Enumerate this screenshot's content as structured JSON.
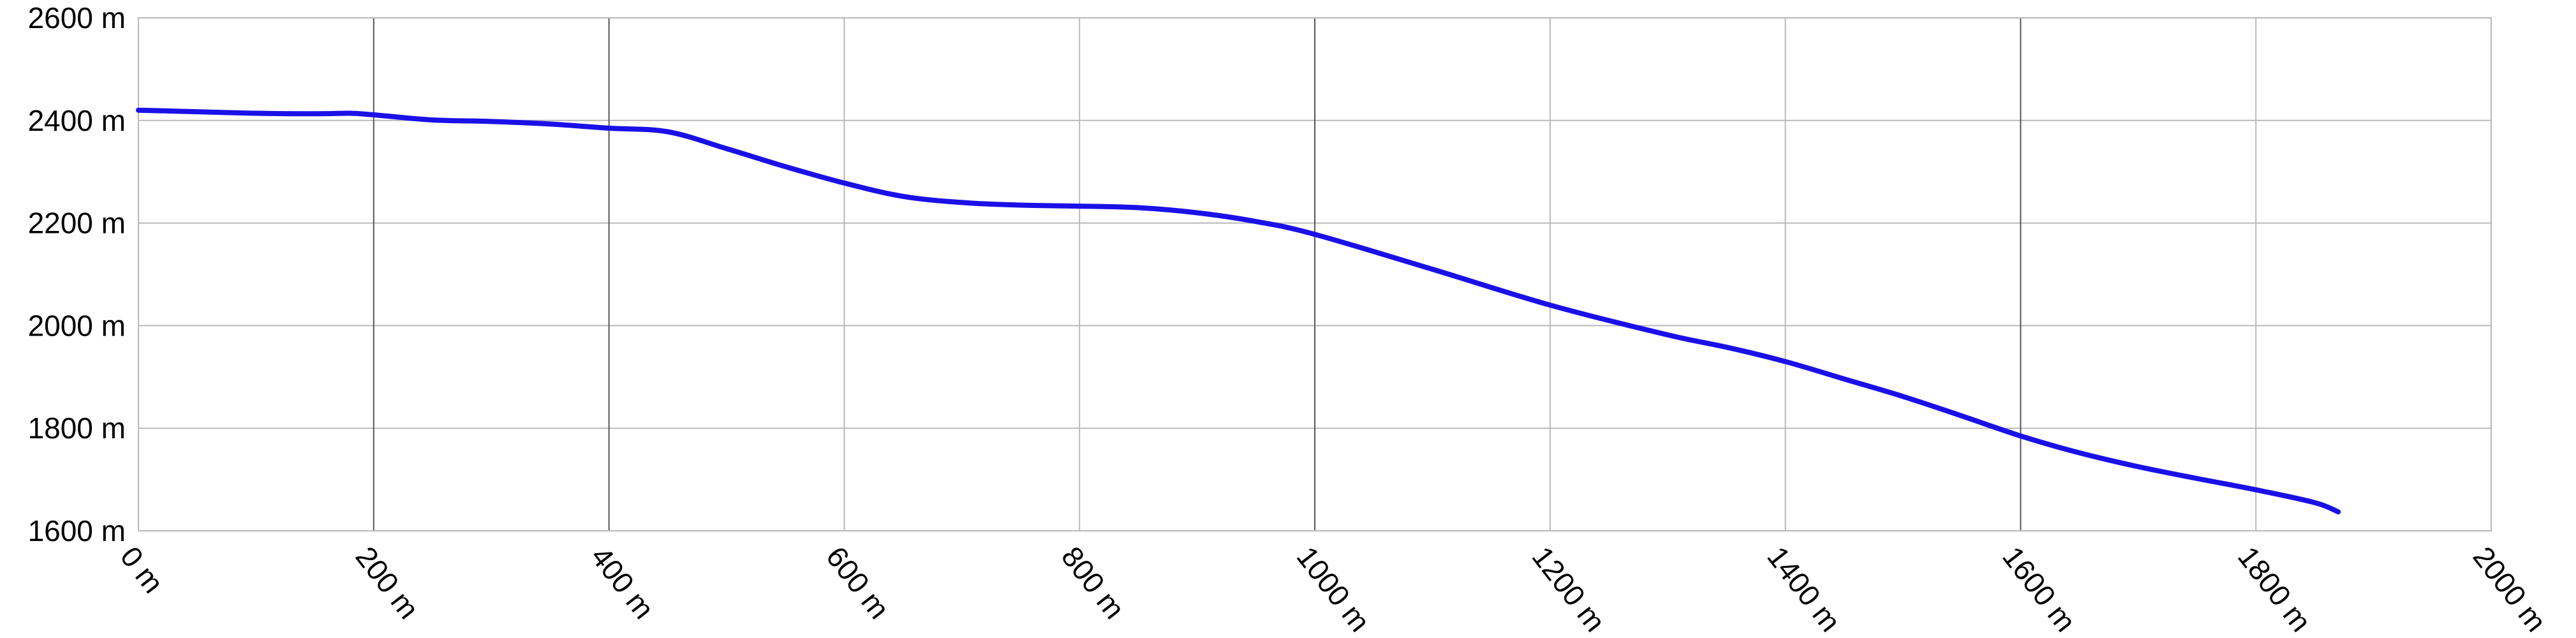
{
  "chart_data": {
    "type": "line",
    "title": "",
    "xlabel": "",
    "ylabel": "",
    "xlim": [
      0,
      2000
    ],
    "ylim": [
      1600,
      2600
    ],
    "x_ticks": [
      0,
      200,
      400,
      600,
      800,
      1000,
      1200,
      1400,
      1600,
      1800,
      2000
    ],
    "x_tick_labels": [
      "0 m",
      "200 m",
      "400 m",
      "600 m",
      "800 m",
      "1000 m",
      "1200 m",
      "1400 m",
      "1600 m",
      "1800 m",
      "2000 m"
    ],
    "y_ticks": [
      1600,
      1800,
      2000,
      2200,
      2400,
      2600
    ],
    "y_tick_labels": [
      "1600 m",
      "1800 m",
      "2000 m",
      "2200 m",
      "2400 m",
      "2600 m"
    ],
    "major_x_gridlines": [
      200,
      400,
      1000,
      1600
    ],
    "grid": true,
    "series_color": "#1a10e8",
    "series": [
      {
        "x": [
          0,
          50,
          100,
          150,
          180,
          200,
          250,
          300,
          350,
          400,
          450,
          500,
          550,
          600,
          650,
          700,
          750,
          800,
          850,
          900,
          950,
          1000,
          1100,
          1200,
          1300,
          1350,
          1400,
          1450,
          1500,
          1550,
          1600,
          1650,
          1700,
          1750,
          1800,
          1850,
          1870
        ],
        "y": [
          2420,
          2417,
          2414,
          2413,
          2414,
          2411,
          2401,
          2398,
          2393,
          2385,
          2378,
          2345,
          2310,
          2278,
          2252,
          2240,
          2235,
          2233,
          2230,
          2220,
          2203,
          2178,
          2110,
          2040,
          1982,
          1958,
          1930,
          1896,
          1862,
          1824,
          1785,
          1752,
          1725,
          1702,
          1680,
          1655,
          1637
        ]
      }
    ]
  }
}
